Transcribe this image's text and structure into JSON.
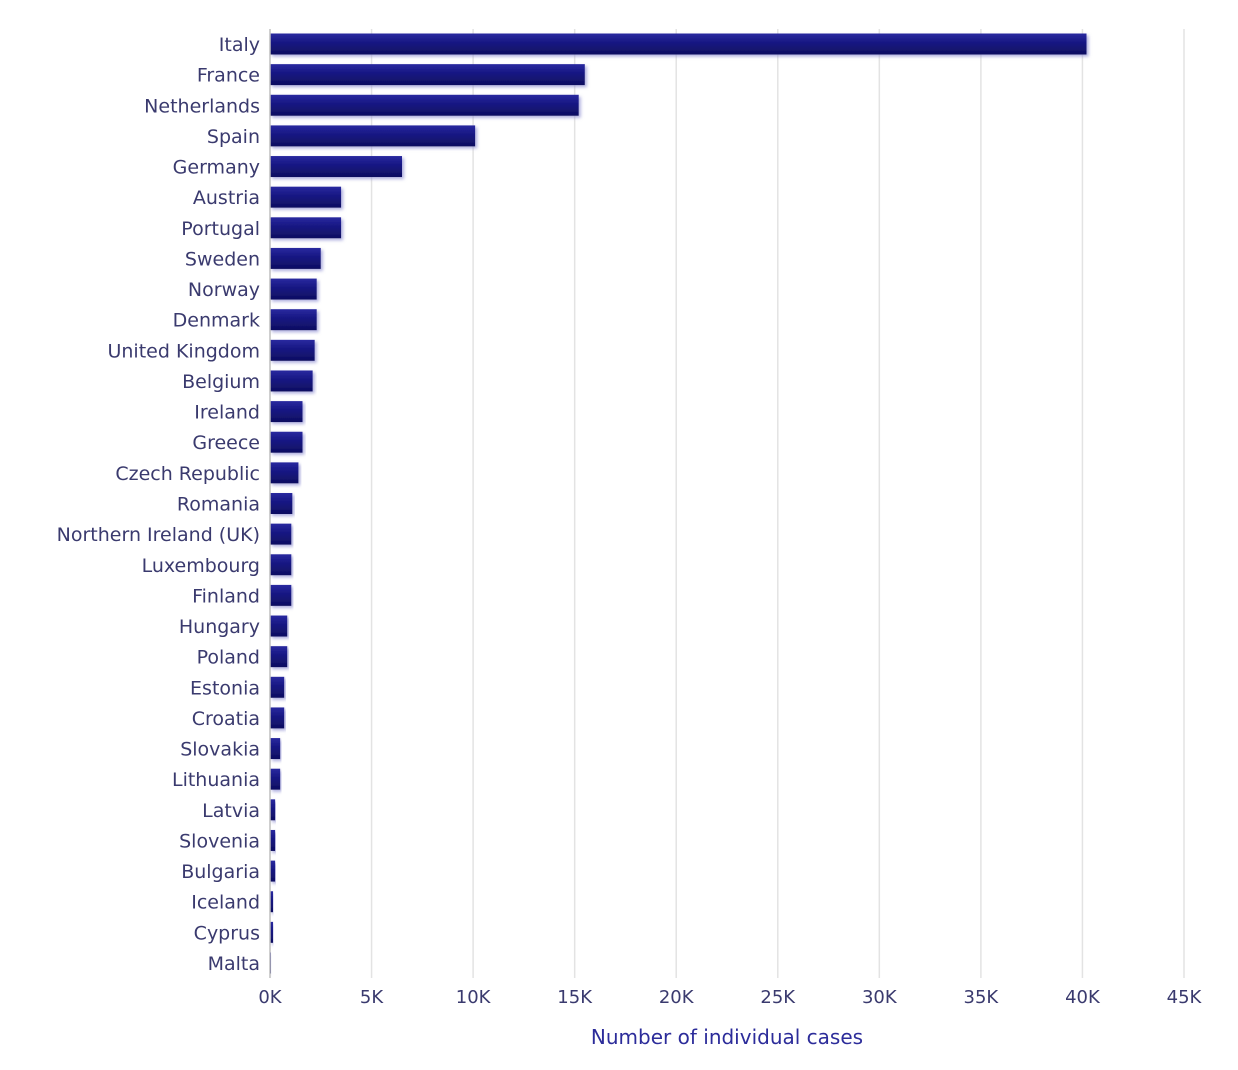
{
  "chart_data": {
    "type": "bar",
    "orientation": "horizontal",
    "categories": [
      "Italy",
      "France",
      "Netherlands",
      "Spain",
      "Germany",
      "Austria",
      "Portugal",
      "Sweden",
      "Norway",
      "Denmark",
      "United Kingdom",
      "Belgium",
      "Ireland",
      "Greece",
      "Czech Republic",
      "Romania",
      "Northern Ireland (UK)",
      "Luxembourg",
      "Finland",
      "Hungary",
      "Poland",
      "Estonia",
      "Croatia",
      "Slovakia",
      "Lithuania",
      "Latvia",
      "Slovenia",
      "Bulgaria",
      "Iceland",
      "Cyprus",
      "Malta"
    ],
    "values": [
      40200,
      15500,
      15200,
      10100,
      6500,
      3500,
      3500,
      2500,
      2300,
      2300,
      2200,
      2100,
      1600,
      1600,
      1400,
      1100,
      1050,
      1050,
      1050,
      850,
      850,
      700,
      700,
      500,
      500,
      250,
      250,
      250,
      150,
      150,
      20
    ],
    "title": "",
    "xlabel": "Number of individual cases",
    "ylabel": "",
    "xlim": [
      0,
      45000
    ],
    "xticks": [
      0,
      5000,
      10000,
      15000,
      20000,
      25000,
      30000,
      35000,
      40000,
      45000
    ],
    "xtick_labels": [
      "0K",
      "5K",
      "10K",
      "15K",
      "20K",
      "25K",
      "30K",
      "35K",
      "40K",
      "45K"
    ],
    "grid": true,
    "legend": "none",
    "bar_color": "#1a1a80"
  }
}
